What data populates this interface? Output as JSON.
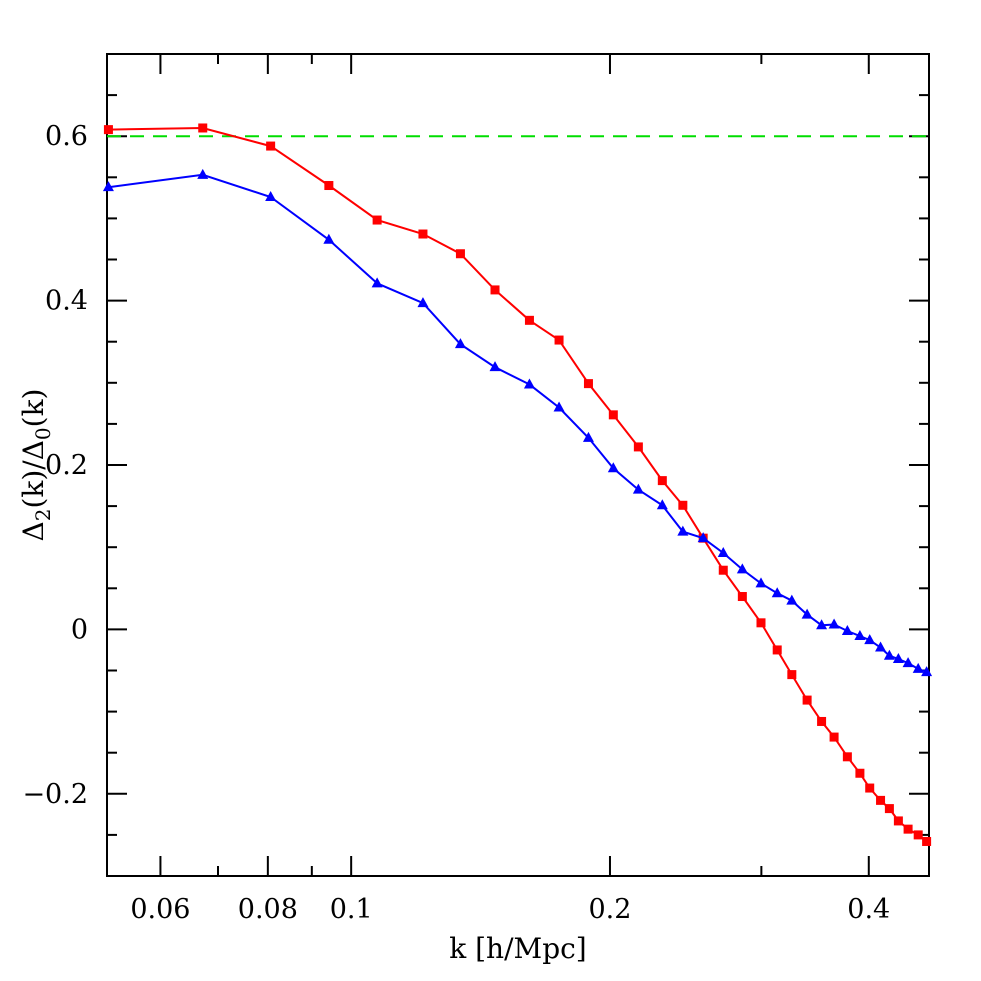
{
  "chart_data": {
    "type": "line",
    "title": "",
    "xlabel": "k [h/Mpc]",
    "ylabel": {
      "delta_1": "Δ",
      "sub_1": "2",
      "mid": "(k)/",
      "delta_2": "Δ",
      "sub_2": "0",
      "end": "(k)"
    },
    "xscale": "log",
    "xlim": [
      0.052,
      0.47
    ],
    "ylim": [
      -0.3,
      0.7
    ],
    "xticks_major": [
      0.06,
      0.08,
      0.1,
      0.2,
      0.4
    ],
    "xtick_labels": [
      "0.06",
      "0.08",
      "0.1",
      "0.2",
      "0.4"
    ],
    "xticks_minor": [
      0.07,
      0.09,
      0.3
    ],
    "yticks_major": [
      -0.2,
      0,
      0.2,
      0.4,
      0.6
    ],
    "ytick_labels": [
      "−0.2",
      "0",
      "0.2",
      "0.4",
      "0.6"
    ],
    "yticks_minor": [
      -0.25,
      -0.15,
      -0.1,
      -0.05,
      0.05,
      0.1,
      0.15,
      0.25,
      0.3,
      0.35,
      0.45,
      0.5,
      0.55,
      0.65
    ],
    "grid": false,
    "reference_line": {
      "y": 0.6,
      "color": "#00dd00",
      "style": "dashed"
    },
    "series": [
      {
        "color": "#ff0000",
        "marker": "square",
        "x": [
          0.0522,
          0.0672,
          0.0806,
          0.0942,
          0.1072,
          0.1212,
          0.134,
          0.147,
          0.1612,
          0.1745,
          0.1888,
          0.2018,
          0.2158,
          0.2301,
          0.2431,
          0.2567,
          0.2709,
          0.2851,
          0.2997,
          0.313,
          0.3255,
          0.3391,
          0.3525,
          0.3645,
          0.3777,
          0.3906,
          0.401,
          0.4128,
          0.4227,
          0.433,
          0.4444,
          0.4566,
          0.467
        ],
        "y": [
          0.608,
          0.61,
          0.588,
          0.54,
          0.498,
          0.481,
          0.457,
          0.413,
          0.376,
          0.352,
          0.299,
          0.261,
          0.222,
          0.181,
          0.151,
          0.111,
          0.072,
          0.04,
          0.008,
          -0.025,
          -0.055,
          -0.086,
          -0.112,
          -0.131,
          -0.155,
          -0.175,
          -0.193,
          -0.208,
          -0.218,
          -0.233,
          -0.243,
          -0.25,
          -0.258
        ]
      },
      {
        "color": "#0000ff",
        "marker": "triangle",
        "x": [
          0.0522,
          0.0672,
          0.0806,
          0.0942,
          0.1072,
          0.1212,
          0.134,
          0.147,
          0.1612,
          0.1745,
          0.1888,
          0.2018,
          0.2158,
          0.2301,
          0.2431,
          0.2567,
          0.2709,
          0.2851,
          0.2997,
          0.313,
          0.3255,
          0.3391,
          0.3525,
          0.3645,
          0.3777,
          0.3906,
          0.401,
          0.4128,
          0.4227,
          0.433,
          0.4444,
          0.4566,
          0.467
        ],
        "y": [
          0.538,
          0.553,
          0.526,
          0.474,
          0.421,
          0.397,
          0.347,
          0.319,
          0.298,
          0.27,
          0.233,
          0.196,
          0.17,
          0.151,
          0.119,
          0.111,
          0.093,
          0.073,
          0.056,
          0.044,
          0.035,
          0.018,
          0.005,
          0.006,
          -0.002,
          -0.008,
          -0.013,
          -0.022,
          -0.032,
          -0.036,
          -0.041,
          -0.048,
          -0.052
        ]
      }
    ]
  }
}
